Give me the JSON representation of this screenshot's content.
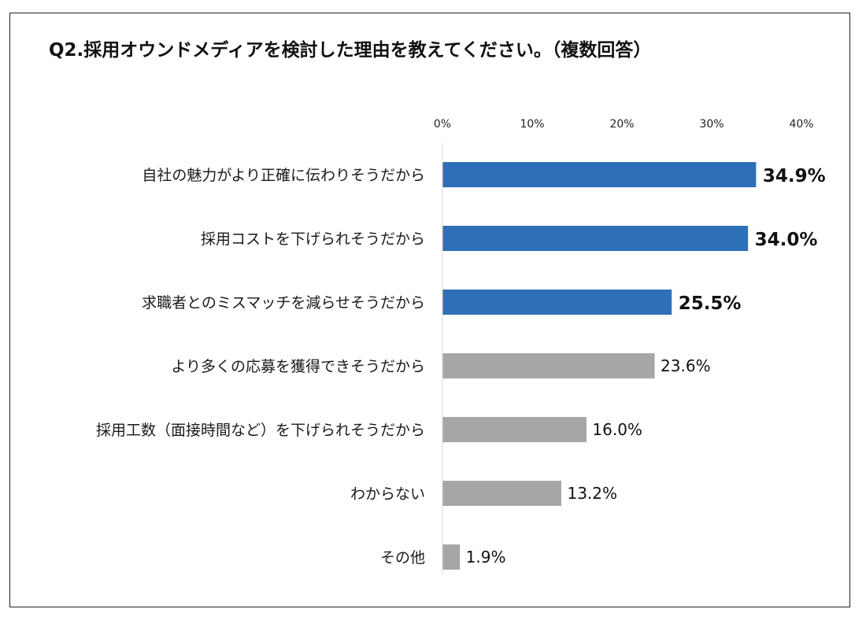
{
  "chart_data": {
    "type": "bar",
    "orientation": "horizontal",
    "title": "Q2.採用オウンドメディアを検討した理由を教えてください。（複数回答）",
    "xlim": [
      0,
      40
    ],
    "ticks": [
      0,
      10,
      20,
      30,
      40
    ],
    "tick_labels": [
      "0%",
      "10%",
      "20%",
      "30%",
      "40%"
    ],
    "grid": false,
    "categories": [
      "自社の魅力がより正確に伝わりそうだから",
      "採用コストを下げられそうだから",
      "求職者とのミスマッチを減らせそうだから",
      "より多くの応募を獲得できそうだから",
      "採用工数（面接時間など）を下げられそうだから",
      "わからない",
      "その他"
    ],
    "values": [
      34.9,
      34.0,
      25.5,
      23.6,
      16.0,
      13.2,
      1.9
    ],
    "value_labels": [
      "34.9%",
      "34.0%",
      "25.5%",
      "23.6%",
      "16.0%",
      "13.2%",
      "1.9%"
    ],
    "highlighted": [
      true,
      true,
      true,
      false,
      false,
      false,
      false
    ],
    "colors": {
      "highlight": "#2E6FBA",
      "default": "#A6A6A6",
      "axis": "#D9D9D9",
      "text": "#111111"
    }
  }
}
